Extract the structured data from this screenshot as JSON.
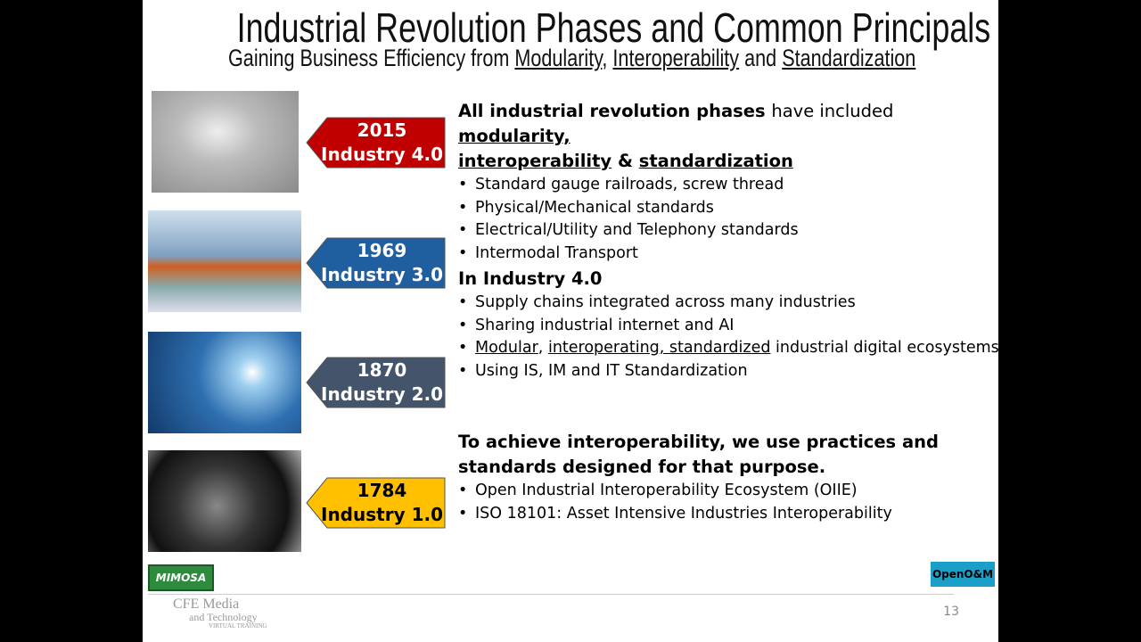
{
  "header": {
    "title": "Industrial Revolution Phases and Common Principals",
    "subtitle": [
      "Gaining Business Efficiency from",
      "Modularity",
      ",",
      "Interoperability",
      "and",
      "Standardization"
    ]
  },
  "timeline": [
    {
      "year": "2015",
      "label": "Industry 4.0"
    },
    {
      "year": "1969",
      "label": "Industry 3.0"
    },
    {
      "year": "1870",
      "label": "Industry 2.0"
    },
    {
      "year": "1784",
      "label": "Industry 1.0"
    }
  ],
  "sections": [
    {
      "heading": [
        "All industrial revolution phases",
        "have included",
        "modularity,",
        "interoperability",
        "&",
        "standardization"
      ],
      "bullets": [
        "Standard gauge railroads, screw thread",
        "Physical/Mechanical standards",
        "Electrical/Utility and Telephony standards",
        "Intermodal Transport"
      ]
    },
    {
      "heading": [
        "In Industry 4.0"
      ],
      "bullets": [
        "Supply chains integrated across many industries",
        "Sharing industrial internet and AI",
        [
          "Modular",
          ",",
          "interoperating, standardized",
          "industrial digital ecosystems"
        ],
        "Using IS, IM and IT Standardization"
      ]
    },
    {
      "heading": [
        "To achieve interoperability, we use practices and standards designed for that purpose."
      ],
      "bullets": [
        "Open Industrial Interoperability Ecosystem (OIIE)",
        "ISO 18101: Asset Intensive Industries Interoperability"
      ]
    }
  ],
  "footer": {
    "logo_left": "MIMOSA",
    "brand": "CFE Media",
    "brand_sub": "and Technology",
    "brand_tag": "VIRTUAL TRAINING",
    "logo_right": "OpenO&M",
    "page_number": "13"
  }
}
